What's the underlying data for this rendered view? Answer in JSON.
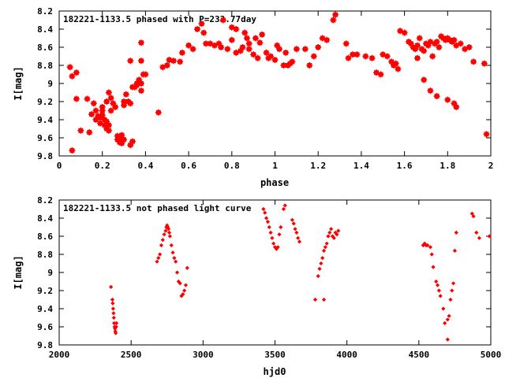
{
  "chart_data": [
    {
      "type": "scatter",
      "title": "182221-1133.5 phased with P=233.77day",
      "xlabel": "phase",
      "ylabel": "I[mag]",
      "xlim": [
        0,
        2
      ],
      "ylim": [
        8.2,
        9.8
      ],
      "y_inverted": true,
      "xticks": [
        0,
        0.2,
        0.4,
        0.6,
        0.8,
        1,
        1.2,
        1.4,
        1.6,
        1.8,
        2
      ],
      "xtick_labels": [
        "0",
        "0.2",
        "0.4",
        "0.6",
        "0.8",
        "1",
        "1.2",
        "1.4",
        "1.6",
        "1.8",
        "2"
      ],
      "yticks": [
        8.2,
        8.4,
        8.6,
        8.8,
        9,
        9.2,
        9.4,
        9.6,
        9.8
      ],
      "ytick_labels": [
        "8.2",
        "8.4",
        "8.6",
        "8.8",
        "9",
        "9.2",
        "9.4",
        "9.6",
        "9.8"
      ],
      "grid": false,
      "marker_color": "#ff0000",
      "series": [
        {
          "points": [
            [
              0.06,
              9.74
            ],
            [
              0.05,
              8.82
            ],
            [
              0.06,
              8.92
            ],
            [
              0.08,
              8.88
            ],
            [
              0.08,
              9.17
            ],
            [
              0.1,
              9.52
            ],
            [
              0.13,
              9.17
            ],
            [
              0.14,
              9.54
            ],
            [
              0.15,
              9.34
            ],
            [
              0.16,
              9.22
            ],
            [
              0.17,
              9.3
            ],
            [
              0.17,
              9.4
            ],
            [
              0.18,
              9.36
            ],
            [
              0.19,
              9.38
            ],
            [
              0.19,
              9.44
            ],
            [
              0.2,
              9.35
            ],
            [
              0.2,
              9.3
            ],
            [
              0.21,
              9.4
            ],
            [
              0.21,
              9.46
            ],
            [
              0.22,
              9.42
            ],
            [
              0.22,
              9.5
            ],
            [
              0.23,
              9.52
            ],
            [
              0.23,
              9.46
            ],
            [
              0.22,
              9.2
            ],
            [
              0.2,
              9.26
            ],
            [
              0.23,
              9.1
            ],
            [
              0.24,
              9.16
            ],
            [
              0.24,
              9.3
            ],
            [
              0.25,
              9.22
            ],
            [
              0.26,
              9.26
            ],
            [
              0.27,
              9.58
            ],
            [
              0.27,
              9.62
            ],
            [
              0.28,
              9.6
            ],
            [
              0.28,
              9.65
            ],
            [
              0.29,
              9.57
            ],
            [
              0.29,
              9.6
            ],
            [
              0.29,
              9.66
            ],
            [
              0.3,
              9.62
            ],
            [
              0.3,
              9.24
            ],
            [
              0.3,
              9.2
            ],
            [
              0.31,
              9.12
            ],
            [
              0.32,
              9.2
            ],
            [
              0.33,
              9.22
            ],
            [
              0.34,
              9.04
            ],
            [
              0.33,
              9.68
            ],
            [
              0.34,
              9.64
            ],
            [
              0.35,
              9.04
            ],
            [
              0.36,
              9.0
            ],
            [
              0.36,
              9.02
            ],
            [
              0.37,
              8.96
            ],
            [
              0.38,
              9.0
            ],
            [
              0.38,
              9.08
            ],
            [
              0.39,
              8.9
            ],
            [
              0.4,
              8.9
            ],
            [
              0.38,
              8.75
            ],
            [
              0.38,
              8.55
            ],
            [
              0.33,
              8.75
            ],
            [
              0.46,
              9.32
            ],
            [
              0.48,
              8.82
            ],
            [
              0.5,
              8.8
            ],
            [
              0.51,
              8.74
            ],
            [
              0.53,
              8.75
            ],
            [
              0.56,
              8.76
            ],
            [
              0.57,
              8.66
            ],
            [
              0.6,
              8.58
            ],
            [
              0.62,
              8.62
            ],
            [
              0.64,
              8.4
            ],
            [
              0.66,
              8.34
            ],
            [
              0.67,
              8.44
            ],
            [
              0.68,
              8.56
            ],
            [
              0.7,
              8.56
            ],
            [
              0.72,
              8.58
            ],
            [
              0.74,
              8.56
            ],
            [
              0.75,
              8.6
            ],
            [
              0.76,
              8.3
            ],
            [
              0.78,
              8.62
            ],
            [
              0.8,
              8.52
            ],
            [
              0.8,
              8.38
            ],
            [
              0.82,
              8.4
            ],
            [
              0.82,
              8.66
            ],
            [
              0.84,
              8.64
            ],
            [
              0.85,
              8.6
            ],
            [
              0.86,
              8.44
            ],
            [
              0.87,
              8.5
            ],
            [
              0.88,
              8.56
            ],
            [
              0.88,
              8.62
            ],
            [
              0.9,
              8.68
            ],
            [
              0.91,
              8.5
            ],
            [
              0.92,
              8.72
            ],
            [
              0.93,
              8.55
            ],
            [
              0.94,
              8.46
            ],
            [
              0.96,
              8.66
            ],
            [
              0.97,
              8.72
            ],
            [
              0.98,
              8.7
            ],
            [
              1.0,
              8.74
            ],
            [
              1.01,
              8.58
            ],
            [
              1.02,
              8.62
            ],
            [
              1.04,
              8.8
            ],
            [
              1.05,
              8.66
            ],
            [
              1.06,
              8.8
            ],
            [
              1.07,
              8.78
            ],
            [
              1.08,
              8.76
            ],
            [
              1.1,
              8.62
            ],
            [
              1.14,
              8.62
            ],
            [
              1.16,
              8.8
            ],
            [
              1.18,
              8.7
            ],
            [
              1.2,
              8.6
            ],
            [
              1.22,
              8.5
            ],
            [
              1.24,
              8.52
            ],
            [
              1.27,
              8.3
            ],
            [
              1.28,
              8.24
            ],
            [
              1.33,
              8.56
            ],
            [
              1.34,
              8.72
            ],
            [
              1.36,
              8.68
            ],
            [
              1.38,
              8.68
            ],
            [
              1.42,
              8.7
            ],
            [
              1.45,
              8.72
            ],
            [
              1.47,
              8.88
            ],
            [
              1.49,
              8.9
            ],
            [
              1.5,
              8.68
            ],
            [
              1.52,
              8.7
            ],
            [
              1.54,
              8.76
            ],
            [
              1.55,
              8.8
            ],
            [
              1.56,
              8.78
            ],
            [
              1.57,
              8.84
            ],
            [
              1.58,
              8.42
            ],
            [
              1.6,
              8.44
            ],
            [
              1.62,
              8.54
            ],
            [
              1.63,
              8.56
            ],
            [
              1.64,
              8.6
            ],
            [
              1.65,
              8.62
            ],
            [
              1.66,
              8.58
            ],
            [
              1.67,
              8.5
            ],
            [
              1.68,
              8.62
            ],
            [
              1.69,
              8.64
            ],
            [
              1.7,
              8.56
            ],
            [
              1.71,
              8.58
            ],
            [
              1.72,
              8.54
            ],
            [
              1.73,
              8.7
            ],
            [
              1.74,
              8.56
            ],
            [
              1.75,
              8.54
            ],
            [
              1.76,
              8.6
            ],
            [
              1.77,
              8.48
            ],
            [
              1.78,
              8.5
            ],
            [
              1.79,
              8.52
            ],
            [
              1.8,
              8.5
            ],
            [
              1.81,
              8.52
            ],
            [
              1.82,
              8.54
            ],
            [
              1.83,
              8.52
            ],
            [
              1.84,
              8.58
            ],
            [
              1.86,
              8.56
            ],
            [
              1.88,
              8.62
            ],
            [
              1.9,
              8.6
            ],
            [
              1.92,
              8.76
            ],
            [
              1.97,
              8.78
            ],
            [
              1.98,
              9.56
            ],
            [
              1.72,
              9.08
            ],
            [
              1.75,
              9.14
            ],
            [
              1.8,
              9.18
            ],
            [
              1.83,
              9.22
            ],
            [
              1.84,
              9.26
            ],
            [
              1.69,
              8.96
            ],
            [
              1.66,
              8.72
            ]
          ]
        }
      ]
    },
    {
      "type": "scatter",
      "title": "182221-1133.5 not phased light curve",
      "xlabel": "hjd0",
      "ylabel": "I[mag]",
      "xlim": [
        2000,
        5000
      ],
      "ylim": [
        8.2,
        9.8
      ],
      "y_inverted": true,
      "xticks": [
        2000,
        2500,
        3000,
        3500,
        4000,
        4500,
        5000
      ],
      "xtick_labels": [
        "2000",
        "2500",
        "3000",
        "3500",
        "4000",
        "4500",
        "5000"
      ],
      "yticks": [
        8.2,
        8.4,
        8.6,
        8.8,
        9,
        9.2,
        9.4,
        9.6,
        9.8
      ],
      "ytick_labels": [
        "8.2",
        "8.4",
        "8.6",
        "8.8",
        "9",
        "9.2",
        "9.4",
        "9.6",
        "9.8"
      ],
      "grid": false,
      "marker_color": "#ff0000",
      "series": [
        {
          "points": [
            [
              2360,
              9.16
            ],
            [
              2370,
              9.3
            ],
            [
              2372,
              9.34
            ],
            [
              2375,
              9.4
            ],
            [
              2378,
              9.45
            ],
            [
              2380,
              9.5
            ],
            [
              2382,
              9.56
            ],
            [
              2385,
              9.6
            ],
            [
              2388,
              9.62
            ],
            [
              2390,
              9.65
            ],
            [
              2393,
              9.67
            ],
            [
              2396,
              9.6
            ],
            [
              2398,
              9.56
            ],
            [
              2680,
              8.88
            ],
            [
              2690,
              8.84
            ],
            [
              2700,
              8.8
            ],
            [
              2710,
              8.7
            ],
            [
              2720,
              8.64
            ],
            [
              2730,
              8.58
            ],
            [
              2740,
              8.54
            ],
            [
              2745,
              8.5
            ],
            [
              2750,
              8.48
            ],
            [
              2755,
              8.5
            ],
            [
              2760,
              8.52
            ],
            [
              2765,
              8.56
            ],
            [
              2770,
              8.6
            ],
            [
              2780,
              8.7
            ],
            [
              2790,
              8.78
            ],
            [
              2800,
              8.84
            ],
            [
              2810,
              8.88
            ],
            [
              2820,
              9.0
            ],
            [
              2830,
              9.1
            ],
            [
              2840,
              9.12
            ],
            [
              2850,
              9.26
            ],
            [
              2860,
              9.24
            ],
            [
              2870,
              9.2
            ],
            [
              2880,
              9.14
            ],
            [
              2890,
              8.95
            ],
            [
              3420,
              8.3
            ],
            [
              3430,
              8.34
            ],
            [
              3440,
              8.4
            ],
            [
              3450,
              8.44
            ],
            [
              3460,
              8.5
            ],
            [
              3470,
              8.56
            ],
            [
              3480,
              8.62
            ],
            [
              3490,
              8.68
            ],
            [
              3500,
              8.72
            ],
            [
              3510,
              8.74
            ],
            [
              3520,
              8.72
            ],
            [
              3530,
              8.58
            ],
            [
              3540,
              8.5
            ],
            [
              3560,
              8.3
            ],
            [
              3570,
              8.26
            ],
            [
              3620,
              8.42
            ],
            [
              3630,
              8.46
            ],
            [
              3640,
              8.52
            ],
            [
              3650,
              8.56
            ],
            [
              3660,
              8.62
            ],
            [
              3670,
              8.66
            ],
            [
              3780,
              9.3
            ],
            [
              3800,
              9.04
            ],
            [
              3810,
              8.96
            ],
            [
              3820,
              8.9
            ],
            [
              3830,
              8.84
            ],
            [
              3840,
              8.76
            ],
            [
              3850,
              8.72
            ],
            [
              3860,
              8.68
            ],
            [
              3870,
              8.6
            ],
            [
              3880,
              8.56
            ],
            [
              3890,
              8.52
            ],
            [
              3900,
              8.6
            ],
            [
              3910,
              8.62
            ],
            [
              3920,
              8.56
            ],
            [
              3930,
              8.58
            ],
            [
              3940,
              8.54
            ],
            [
              3840,
              9.3
            ],
            [
              4530,
              8.7
            ],
            [
              4540,
              8.68
            ],
            [
              4550,
              8.7
            ],
            [
              4560,
              8.7
            ],
            [
              4580,
              8.72
            ],
            [
              4590,
              8.8
            ],
            [
              4600,
              8.94
            ],
            [
              4620,
              9.1
            ],
            [
              4630,
              9.14
            ],
            [
              4640,
              9.2
            ],
            [
              4650,
              9.26
            ],
            [
              4670,
              9.4
            ],
            [
              4680,
              9.56
            ],
            [
              4700,
              9.52
            ],
            [
              4710,
              9.48
            ],
            [
              4720,
              9.3
            ],
            [
              4730,
              9.2
            ],
            [
              4740,
              9.12
            ],
            [
              4750,
              8.76
            ],
            [
              4760,
              8.56
            ],
            [
              4700,
              9.74
            ],
            [
              4870,
              8.35
            ],
            [
              4880,
              8.38
            ],
            [
              4900,
              8.56
            ],
            [
              4920,
              8.62
            ],
            [
              4990,
              8.6
            ]
          ]
        }
      ]
    }
  ]
}
